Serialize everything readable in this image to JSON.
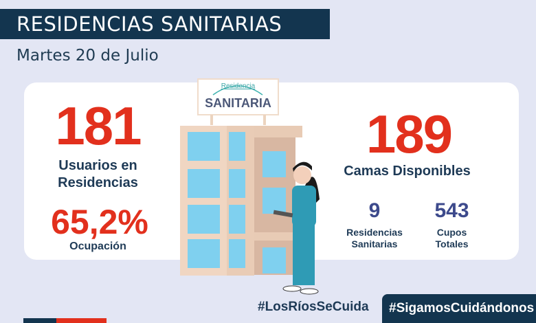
{
  "header": {
    "title": "RESIDENCIAS SANITARIAS",
    "date": "Martes 20 de Julio"
  },
  "left": {
    "users_value": "181",
    "users_label_1": "Usuarios en",
    "users_label_2": "Residencias",
    "occupancy_value": "65,2%",
    "occupancy_label": "Ocupación"
  },
  "right": {
    "beds_value": "189",
    "beds_label": "Camas Disponibles",
    "residences_value": "9",
    "residences_label_1": "Residencias",
    "residences_label_2": "Sanitarias",
    "slots_value": "543",
    "slots_label_1": "Cupos",
    "slots_label_2": "Totales"
  },
  "sign": {
    "line1": "Residencia",
    "line2": "SANITARIA"
  },
  "footer": {
    "hashtag_1": "#LosRíosSeCuida",
    "hashtag_2": "#SigamosCuidándonos"
  },
  "colors": {
    "navy": "#13354f",
    "red": "#e2301d",
    "background": "#e3e6f4"
  }
}
